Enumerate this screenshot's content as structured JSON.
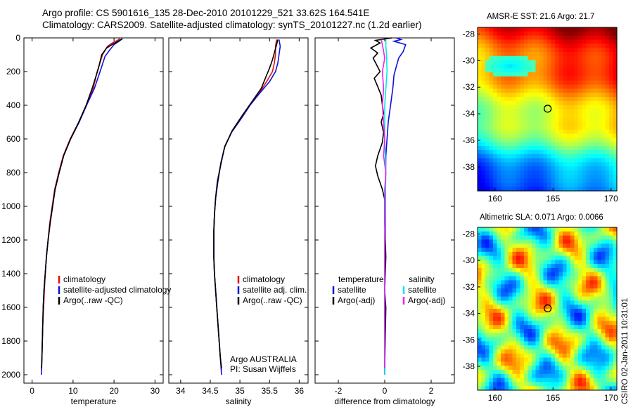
{
  "header": {
    "line1": "Argo profile: CS 5901616_135 28-Dec-2010 20101229_521 33.62S 164.541E",
    "line2": "Climatology: CARS2009. Satellite-adjusted climatology: synTS_20101227.nc (1.2d earlier)"
  },
  "footer_stamp": "CSIRO 02-Jan-2011 10:31:01",
  "colors": {
    "climatology": "#dd1111",
    "satellite": "#1010dd",
    "argo": "#000000",
    "sat_salinity": "#00e8e8",
    "argo_salinity": "#ee22ee"
  },
  "chart_data": [
    {
      "type": "line",
      "name": "temperature",
      "xlabel": "temperature",
      "xlim": [
        -2,
        32
      ],
      "ylim": [
        2050,
        0
      ],
      "xticks": [
        0,
        10,
        20,
        30
      ],
      "yticks": [
        0,
        200,
        400,
        600,
        800,
        1000,
        1200,
        1400,
        1600,
        1800,
        2000
      ],
      "legend": [
        "climatology",
        "satellite-adjusted climatology",
        "Argo(..raw -QC)"
      ],
      "series": [
        {
          "name": "climatology",
          "color_key": "climatology",
          "points": [
            [
              21.5,
              5
            ],
            [
              20.8,
              15
            ],
            [
              19.6,
              30
            ],
            [
              18.4,
              50
            ],
            [
              17.2,
              100
            ],
            [
              15.9,
              200
            ],
            [
              14.9,
              300
            ],
            [
              13.2,
              400
            ],
            [
              11.4,
              500
            ],
            [
              9.3,
              600
            ],
            [
              7.6,
              700
            ],
            [
              6.5,
              800
            ],
            [
              5.5,
              900
            ],
            [
              4.9,
              1000
            ],
            [
              4.3,
              1100
            ],
            [
              3.9,
              1200
            ],
            [
              3.5,
              1300
            ],
            [
              3.2,
              1400
            ],
            [
              3.0,
              1500
            ],
            [
              2.8,
              1600
            ],
            [
              2.6,
              1700
            ],
            [
              2.5,
              1800
            ],
            [
              2.4,
              1900
            ],
            [
              2.3,
              1970
            ]
          ]
        },
        {
          "name": "satellite-adjusted climatology",
          "color_key": "satellite",
          "points": [
            [
              22.0,
              5
            ],
            [
              21.2,
              20
            ],
            [
              20.0,
              40
            ],
            [
              19.0,
              70
            ],
            [
              17.8,
              110
            ],
            [
              16.6,
              200
            ],
            [
              15.2,
              300
            ],
            [
              13.3,
              400
            ],
            [
              11.5,
              500
            ],
            [
              9.4,
              600
            ],
            [
              7.7,
              700
            ],
            [
              6.6,
              800
            ],
            [
              5.6,
              900
            ],
            [
              5.0,
              1000
            ],
            [
              4.4,
              1100
            ],
            [
              3.9,
              1200
            ],
            [
              3.5,
              1300
            ],
            [
              3.2,
              1400
            ],
            [
              2.9,
              1500
            ],
            [
              2.7,
              1600
            ],
            [
              2.6,
              1700
            ],
            [
              2.5,
              1800
            ],
            [
              2.4,
              1900
            ],
            [
              2.3,
              2000
            ]
          ]
        },
        {
          "name": "Argo(..raw -QC)",
          "color_key": "argo",
          "points": [
            [
              22.1,
              5
            ],
            [
              21.0,
              20
            ],
            [
              19.5,
              40
            ],
            [
              18.2,
              60
            ],
            [
              17.0,
              100
            ],
            [
              16.2,
              180
            ],
            [
              14.8,
              290
            ],
            [
              13.2,
              400
            ],
            [
              11.4,
              500
            ],
            [
              9.4,
              600
            ],
            [
              7.7,
              700
            ],
            [
              6.6,
              800
            ],
            [
              5.6,
              900
            ],
            [
              5.0,
              1000
            ],
            [
              4.4,
              1100
            ],
            [
              3.9,
              1200
            ],
            [
              3.5,
              1300
            ],
            [
              3.2,
              1400
            ],
            [
              2.9,
              1500
            ],
            [
              2.7,
              1600
            ],
            [
              2.6,
              1700
            ],
            [
              2.5,
              1800
            ],
            [
              2.4,
              1900
            ],
            [
              2.3,
              1960
            ]
          ]
        }
      ]
    },
    {
      "type": "line",
      "name": "salinity",
      "xlabel": "salinity",
      "xlim": [
        33.8,
        36.15
      ],
      "ylim": [
        2050,
        0
      ],
      "xticks": [
        34,
        34.5,
        35,
        35.5,
        36
      ],
      "legend": [
        "climatology",
        "satellite adj. clim.",
        "Argo(..raw -QC)"
      ],
      "annotation": [
        "Argo AUSTRALIA",
        "PI: Susan Wijffels"
      ],
      "series": [
        {
          "name": "climatology",
          "color_key": "climatology",
          "points": [
            [
              35.62,
              10
            ],
            [
              35.6,
              50
            ],
            [
              35.6,
              100
            ],
            [
              35.58,
              150
            ],
            [
              35.55,
              200
            ],
            [
              35.45,
              260
            ],
            [
              35.32,
              330
            ],
            [
              35.17,
              400
            ],
            [
              35.02,
              480
            ],
            [
              34.86,
              560
            ],
            [
              34.74,
              650
            ],
            [
              34.68,
              750
            ],
            [
              34.62,
              850
            ],
            [
              34.59,
              950
            ],
            [
              34.57,
              1050
            ],
            [
              34.56,
              1150
            ],
            [
              34.56,
              1300
            ],
            [
              34.57,
              1400
            ],
            [
              34.59,
              1500
            ],
            [
              34.61,
              1600
            ],
            [
              34.63,
              1700
            ],
            [
              34.65,
              1800
            ],
            [
              34.67,
              1900
            ],
            [
              34.69,
              1970
            ]
          ]
        },
        {
          "name": "satellite adj. clim.",
          "color_key": "satellite",
          "points": [
            [
              35.66,
              10
            ],
            [
              35.68,
              50
            ],
            [
              35.66,
              100
            ],
            [
              35.64,
              150
            ],
            [
              35.6,
              200
            ],
            [
              35.5,
              260
            ],
            [
              35.33,
              330
            ],
            [
              35.17,
              400
            ],
            [
              35.02,
              480
            ],
            [
              34.86,
              560
            ],
            [
              34.74,
              650
            ],
            [
              34.68,
              750
            ],
            [
              34.62,
              850
            ],
            [
              34.59,
              950
            ],
            [
              34.57,
              1050
            ],
            [
              34.56,
              1150
            ],
            [
              34.56,
              1300
            ],
            [
              34.57,
              1400
            ],
            [
              34.59,
              1500
            ],
            [
              34.61,
              1600
            ],
            [
              34.63,
              1700
            ],
            [
              34.65,
              1800
            ],
            [
              34.67,
              1900
            ],
            [
              34.69,
              2000
            ]
          ]
        },
        {
          "name": "Argo(..raw -QC)",
          "color_key": "argo",
          "points": [
            [
              35.64,
              10
            ],
            [
              35.62,
              40
            ],
            [
              35.58,
              90
            ],
            [
              35.55,
              130
            ],
            [
              35.5,
              180
            ],
            [
              35.44,
              230
            ],
            [
              35.36,
              300
            ],
            [
              35.2,
              380
            ],
            [
              35.04,
              460
            ],
            [
              34.87,
              550
            ],
            [
              34.75,
              640
            ],
            [
              34.68,
              740
            ],
            [
              34.63,
              850
            ],
            [
              34.59,
              950
            ],
            [
              34.57,
              1050
            ],
            [
              34.56,
              1150
            ],
            [
              34.56,
              1300
            ],
            [
              34.57,
              1400
            ],
            [
              34.59,
              1500
            ],
            [
              34.61,
              1600
            ],
            [
              34.63,
              1700
            ],
            [
              34.65,
              1800
            ],
            [
              34.67,
              1900
            ],
            [
              34.69,
              1960
            ]
          ]
        }
      ]
    },
    {
      "type": "line",
      "name": "difference",
      "xlabel": "difference from climatology",
      "xlim": [
        -3,
        3
      ],
      "ylim": [
        2050,
        0
      ],
      "xticks": [
        -2,
        0,
        2
      ],
      "legend_headers": [
        "temperature",
        "salinity"
      ],
      "legend": [
        "satellite",
        "Argo(-adj)",
        "satellite",
        "Argo(-adj)"
      ],
      "series": [
        {
          "name": "temperature satellite",
          "color_key": "satellite",
          "points": [
            [
              0.5,
              0
            ],
            [
              0.7,
              10
            ],
            [
              0.4,
              20
            ],
            [
              0.9,
              40
            ],
            [
              0.8,
              80
            ],
            [
              0.6,
              120
            ],
            [
              0.5,
              170
            ],
            [
              0.4,
              220
            ],
            [
              0.35,
              300
            ],
            [
              0.25,
              400
            ],
            [
              0.15,
              500
            ],
            [
              0.1,
              600
            ],
            [
              0.05,
              700
            ],
            [
              0.04,
              800
            ],
            [
              0.03,
              1000
            ],
            [
              0.02,
              1200
            ],
            [
              0.0,
              1400
            ],
            [
              0.0,
              1700
            ],
            [
              0.0,
              2000
            ]
          ]
        },
        {
          "name": "temperature Argo(-adj)",
          "color_key": "argo",
          "points": [
            [
              0.3,
              0
            ],
            [
              -0.4,
              15
            ],
            [
              -0.2,
              30
            ],
            [
              -0.6,
              60
            ],
            [
              -0.3,
              90
            ],
            [
              -0.5,
              120
            ],
            [
              -0.35,
              160
            ],
            [
              -0.2,
              200
            ],
            [
              -0.45,
              240
            ],
            [
              -0.3,
              290
            ],
            [
              -0.15,
              340
            ],
            [
              -0.1,
              400
            ],
            [
              -0.05,
              450
            ],
            [
              -0.15,
              500
            ],
            [
              -0.05,
              560
            ],
            [
              -0.1,
              620
            ],
            [
              -0.3,
              700
            ],
            [
              -0.4,
              760
            ],
            [
              -0.3,
              820
            ],
            [
              -0.1,
              900
            ],
            [
              0.0,
              960
            ],
            [
              0.0,
              1100
            ],
            [
              0.05,
              1300
            ],
            [
              0.0,
              1500
            ],
            [
              0.05,
              1600
            ],
            [
              0.0,
              1960
            ]
          ]
        },
        {
          "name": "salinity satellite",
          "color_key": "sat_salinity",
          "points": [
            [
              0.05,
              10
            ],
            [
              0.05,
              50
            ],
            [
              0.08,
              100
            ],
            [
              0.1,
              200
            ],
            [
              0.05,
              300
            ],
            [
              0.0,
              400
            ],
            [
              0.0,
              500
            ],
            [
              0.0,
              600
            ],
            [
              0.05,
              800
            ],
            [
              0.02,
              1000
            ],
            [
              0.0,
              1200
            ],
            [
              0.0,
              1400
            ],
            [
              0.0,
              1700
            ],
            [
              0.0,
              2000
            ]
          ]
        },
        {
          "name": "salinity Argo(-adj)",
          "color_key": "argo_salinity",
          "points": [
            [
              -0.15,
              10
            ],
            [
              -0.1,
              40
            ],
            [
              -0.05,
              80
            ],
            [
              0.0,
              120
            ],
            [
              -0.1,
              200
            ],
            [
              -0.05,
              300
            ],
            [
              -0.1,
              400
            ],
            [
              -0.05,
              500
            ],
            [
              0.0,
              600
            ],
            [
              -0.05,
              700
            ],
            [
              0.05,
              800
            ],
            [
              0.0,
              900
            ],
            [
              0.0,
              1100
            ],
            [
              0.0,
              1300
            ],
            [
              0.0,
              1500
            ],
            [
              0.0,
              1700
            ],
            [
              0.0,
              1960
            ]
          ]
        }
      ]
    },
    {
      "type": "heatmap",
      "name": "sst_map",
      "title": "AMSR-E SST: 21.6 Argo: 21.7",
      "xlim": [
        158.5,
        170.5
      ],
      "ylim": [
        -39.8,
        -27.5
      ],
      "xticks": [
        160,
        165,
        170
      ],
      "yticks": [
        -28,
        -30,
        -32,
        -34,
        -36,
        -38
      ],
      "marker": {
        "lon": 164.541,
        "lat": -33.62
      },
      "value_range": [
        17,
        24
      ]
    },
    {
      "type": "heatmap",
      "name": "sla_map",
      "title": "Altimetric SLA: 0.071 Argo: 0.0066",
      "xlim": [
        158.5,
        170.5
      ],
      "ylim": [
        -39.8,
        -27.5
      ],
      "xticks": [
        160,
        165,
        170
      ],
      "yticks": [
        -28,
        -30,
        -32,
        -34,
        -36,
        -38
      ],
      "marker": {
        "lon": 164.541,
        "lat": -33.62
      },
      "value_range": [
        -0.3,
        0.3
      ]
    }
  ]
}
